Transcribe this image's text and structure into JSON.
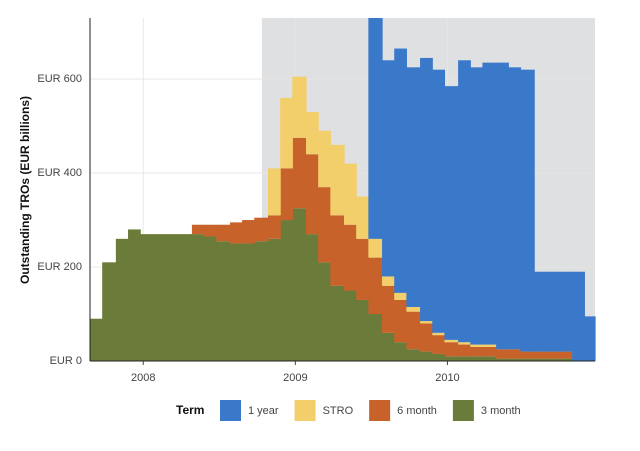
{
  "chart_data": {
    "type": "stacked-step-area",
    "y_label": "Outstanding TROs (EUR billions)",
    "legend_title": "Term",
    "x": [
      2007.65,
      2007.73,
      2007.82,
      2007.9,
      2007.98,
      2008.07,
      2008.15,
      2008.23,
      2008.32,
      2008.4,
      2008.48,
      2008.57,
      2008.65,
      2008.73,
      2008.82,
      2008.9,
      2008.98,
      2009.07,
      2009.15,
      2009.23,
      2009.32,
      2009.4,
      2009.48,
      2009.57,
      2009.65,
      2009.73,
      2009.82,
      2009.9,
      2009.98,
      2010.07,
      2010.15,
      2010.23,
      2010.32,
      2010.4,
      2010.48,
      2010.57,
      2010.65,
      2010.73,
      2010.82,
      2010.9
    ],
    "series": [
      {
        "name": "3 month",
        "color": "#6b7b3a",
        "values": [
          90,
          210,
          260,
          280,
          270,
          270,
          270,
          270,
          270,
          265,
          255,
          250,
          250,
          255,
          260,
          300,
          325,
          270,
          210,
          160,
          150,
          130,
          100,
          60,
          40,
          25,
          20,
          15,
          10,
          10,
          10,
          10,
          5,
          5,
          5,
          5,
          5,
          5,
          0,
          0
        ]
      },
      {
        "name": "6 month",
        "color": "#c8622b",
        "values": [
          0,
          0,
          0,
          0,
          0,
          0,
          0,
          0,
          20,
          25,
          35,
          45,
          50,
          50,
          50,
          110,
          150,
          170,
          160,
          150,
          140,
          130,
          120,
          100,
          90,
          80,
          60,
          40,
          30,
          25,
          20,
          20,
          20,
          20,
          15,
          15,
          15,
          15,
          0,
          0
        ]
      },
      {
        "name": "STRO",
        "color": "#f2cf6b",
        "values": [
          0,
          0,
          0,
          0,
          0,
          0,
          0,
          0,
          0,
          0,
          0,
          0,
          0,
          0,
          100,
          150,
          130,
          90,
          120,
          150,
          130,
          90,
          40,
          20,
          15,
          10,
          5,
          5,
          5,
          5,
          5,
          5,
          0,
          0,
          0,
          0,
          0,
          0,
          0,
          0
        ]
      },
      {
        "name": "1 year",
        "color": "#3a78c9",
        "values": [
          0,
          0,
          0,
          0,
          0,
          0,
          0,
          0,
          0,
          0,
          0,
          0,
          0,
          0,
          0,
          0,
          0,
          0,
          0,
          0,
          0,
          0,
          470,
          460,
          520,
          510,
          560,
          560,
          540,
          600,
          590,
          600,
          610,
          600,
          600,
          170,
          170,
          170,
          190,
          95
        ]
      }
    ],
    "legend_order": [
      3,
      2,
      1,
      0
    ],
    "shaded_region": [
      2008.78,
      2010.97
    ],
    "xlim": [
      2007.65,
      2010.97
    ],
    "xticks": [
      2008,
      2009,
      2010
    ],
    "ylim": [
      0,
      730
    ],
    "yticks": [
      {
        "value": 0,
        "label": "EUR 0"
      },
      {
        "value": 200,
        "label": "EUR 200"
      },
      {
        "value": 400,
        "label": "EUR 400"
      },
      {
        "value": 600,
        "label": "EUR 600"
      }
    ],
    "grid": true
  }
}
